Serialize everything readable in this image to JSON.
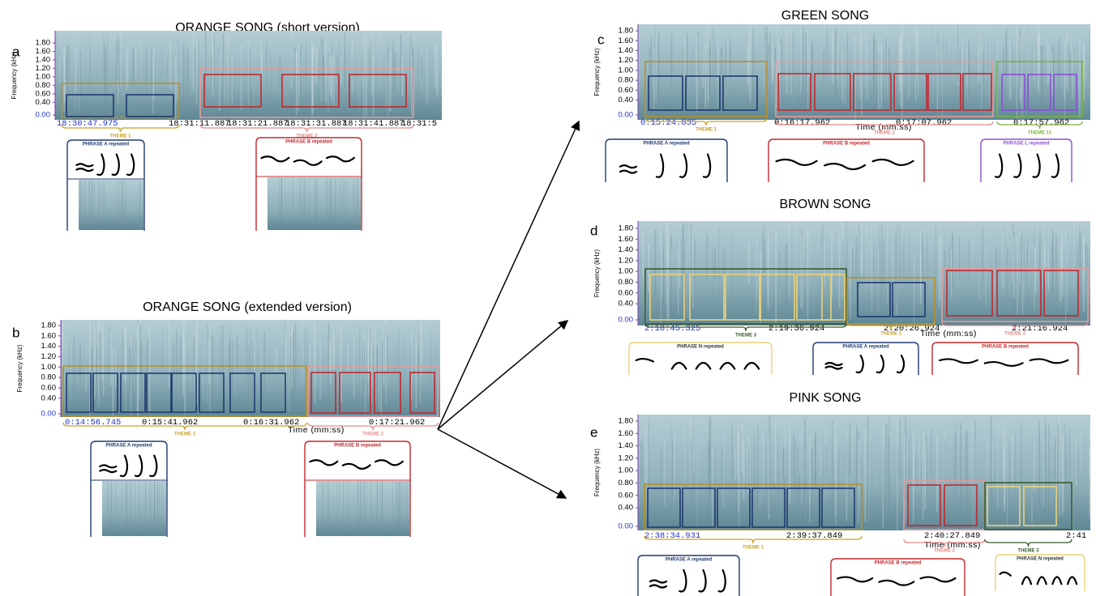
{
  "panels": [
    {
      "letter": "a",
      "title": "ORANGE SONG (short version)",
      "y_label": "Frequency (kHz)",
      "y_ticks": [
        "1.80",
        "1.60",
        "1.40",
        "1.20",
        "1.00",
        "0.80",
        "0.60",
        "0.40",
        "0.00"
      ],
      "time_labels": [
        "18:30:47.975",
        "18:31:11.887",
        "18:31:21.887",
        "18:31:31.887",
        "18:31:41.887",
        "18:31:5"
      ],
      "themes": [
        "THEME 1",
        "THEME 2"
      ],
      "phrases": [
        "PHRASE A repeated",
        "PHRASE B repeated"
      ]
    },
    {
      "letter": "b",
      "title": "ORANGE SONG (extended version)",
      "y_label": "Frequency (kHz)",
      "y_ticks": [
        "1.80",
        "1.60",
        "1.40",
        "1.20",
        "1.00",
        "0.80",
        "0.60",
        "0.40",
        "0.00"
      ],
      "time_labels": [
        "0:14:56.745",
        "0:15:41.962",
        "0:16:31.962",
        "0:17:21.962"
      ],
      "x_label": "Time (mm:ss)",
      "themes": [
        "THEME 1",
        "THEME 2"
      ],
      "phrases": [
        "PHRASE A repeated",
        "PHRASE B repeated"
      ]
    },
    {
      "letter": "c",
      "title": "GREEN SONG",
      "y_label": "Frequency (kHz)",
      "y_ticks": [
        "1.80",
        "1.60",
        "1.40",
        "1.20",
        "1.00",
        "0.80",
        "0.60",
        "0.40",
        "0.00"
      ],
      "time_labels": [
        "0:15:24.835",
        "0:16:17.962",
        "0:17:07.962",
        "0:17:57.962"
      ],
      "x_label": "Time (mm:ss)",
      "themes": [
        "THEME 1",
        "THEME 2",
        "THEME 11"
      ],
      "phrases": [
        "PHRASE A repeated",
        "PHRASE B repeated",
        "PHRASE L repeated"
      ]
    },
    {
      "letter": "d",
      "title": "BROWN SONG",
      "y_label": "Frequency (kHz)",
      "y_ticks": [
        "1.80",
        "1.60",
        "1.40",
        "1.20",
        "1.00",
        "0.80",
        "0.60",
        "0.40",
        "0.00"
      ],
      "time_labels": [
        "2:18:45.325",
        "2:19:36.924",
        "2:20:26.924",
        "2:21:16.924"
      ],
      "x_label": "Time (mm:ss)",
      "themes": [
        "THEME 3",
        "THEME 1",
        "THEME 2"
      ],
      "phrases": [
        "PHRASE N repeated",
        "PHRASE A repeated",
        "PHRASE B repeated"
      ]
    },
    {
      "letter": "e",
      "title": "PINK SONG",
      "y_label": "Frequency (kHz)",
      "y_ticks": [
        "1.80",
        "1.60",
        "1.40",
        "1.20",
        "1.00",
        "0.80",
        "0.60",
        "0.40",
        "0.00"
      ],
      "time_labels": [
        "2:38:34.931",
        "2:39:37.849",
        "2:40:27.849",
        "2:41"
      ],
      "x_label": "Time (mm:ss)",
      "themes": [
        "THEME 1",
        "THEME 2",
        "THEME 3"
      ],
      "phrases": [
        "PHRASE A repeated",
        "PHRASE B repeated",
        "PHRASE N repeated"
      ]
    }
  ]
}
